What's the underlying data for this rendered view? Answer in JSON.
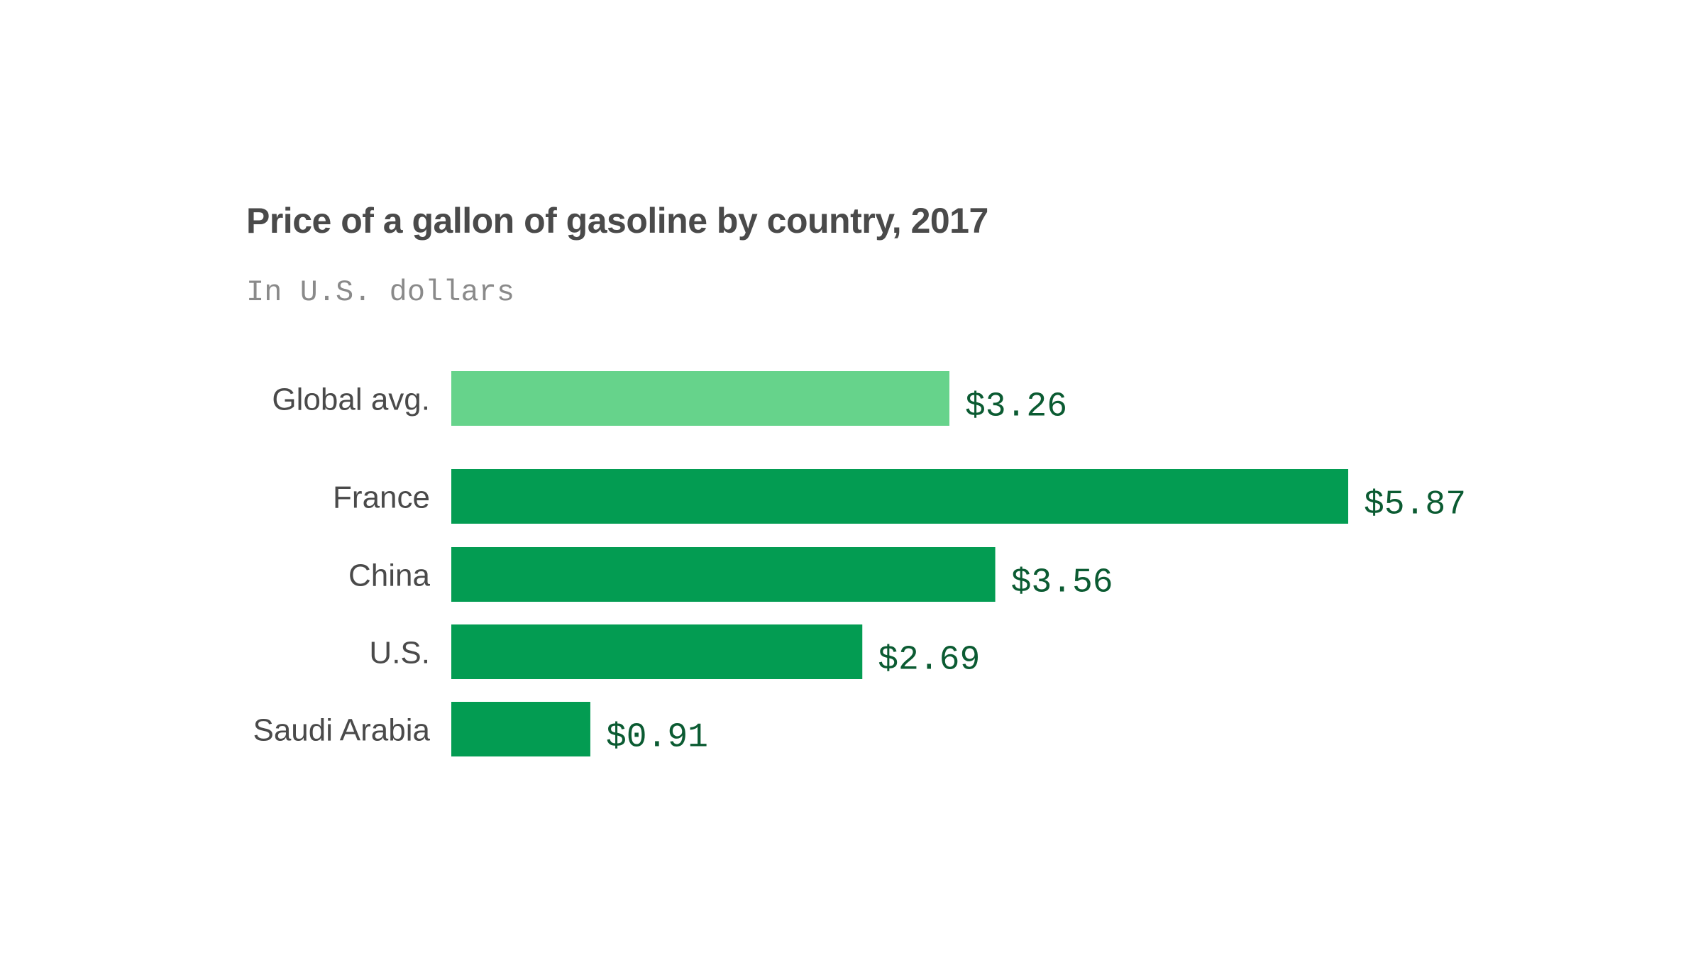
{
  "chart_data": {
    "type": "bar",
    "orientation": "horizontal",
    "title": "Price of a gallon of gasoline by country, 2017",
    "subtitle": "In U.S. dollars",
    "categories": [
      "Global avg.",
      "France",
      "China",
      "U.S.",
      "Saudi Arabia"
    ],
    "values": [
      3.26,
      5.87,
      3.56,
      2.69,
      0.91
    ],
    "value_labels": [
      "$3.26",
      "$5.87",
      "$3.56",
      "$2.69",
      "$0.91"
    ],
    "xlabel": "",
    "ylabel": "",
    "xlim": [
      0,
      5.87
    ],
    "grid": false,
    "colors": {
      "highlight": "#66d38b",
      "default": "#039c52",
      "value_text": "#0b5b32"
    }
  }
}
